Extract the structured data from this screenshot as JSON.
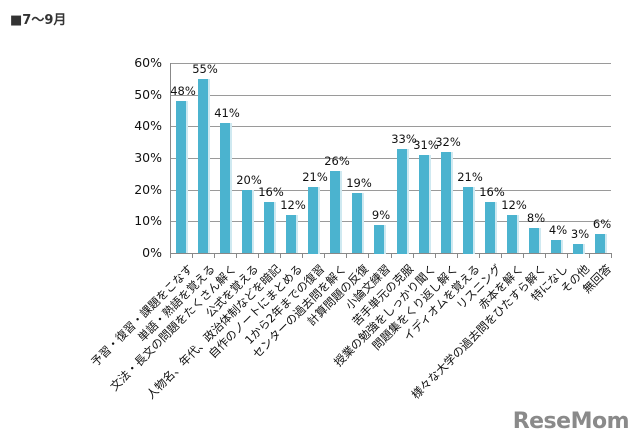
{
  "title": "■7～9月",
  "logo": "ReseMom",
  "chart_data": {
    "type": "bar",
    "title": "■7～9月",
    "xlabel": "",
    "ylabel": "",
    "ylim": [
      0,
      60
    ],
    "yticks": [
      "0%",
      "10%",
      "20%",
      "30%",
      "40%",
      "50%",
      "60%"
    ],
    "grid": true,
    "legend": null,
    "bar_color": "#4bb3cf",
    "categories": [
      "予習・復習・課題をこなす",
      "単語・熟語を覚える",
      "文法・長文の問題をたくさん解く",
      "公式を覚える",
      "人物名、年代、政治体制などを暗記",
      "自作のノートにまとめる",
      "1から2年までの復習",
      "センターの過去問を解く",
      "計算問題の反復",
      "小論文練習",
      "苦手単元の克服",
      "授業の勉強をしっかり聞く",
      "問題集をくり返し解く",
      "イディオムを覚える",
      "リスニング",
      "赤本を解く",
      "様々な大学の過去問をひたすら解く",
      "特になし",
      "その他",
      "無回答"
    ],
    "values": [
      48,
      55,
      41,
      20,
      16,
      12,
      21,
      26,
      19,
      9,
      33,
      31,
      32,
      21,
      16,
      12,
      8,
      4,
      3,
      6
    ],
    "value_labels": [
      "48%",
      "55%",
      "41%",
      "20%",
      "16%",
      "12%",
      "21%",
      "26%",
      "19%",
      "9%",
      "33%",
      "31%",
      "32%",
      "21%",
      "16%",
      "12%",
      "8%",
      "4%",
      "3%",
      "6%"
    ]
  }
}
